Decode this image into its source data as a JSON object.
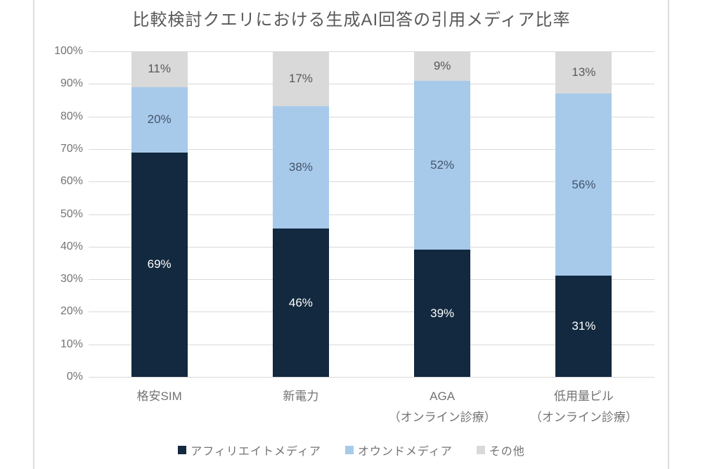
{
  "title": "比較検討クエリにおける生成AI回答の引用メディア比率",
  "chart_data": {
    "type": "bar",
    "stacked": true,
    "orientation": "vertical",
    "title": "比較検討クエリにおける生成AI回答の引用メディア比率",
    "y_axis": {
      "min": 0,
      "max": 100,
      "tick_step": 10,
      "tick_labels": [
        "0%",
        "10%",
        "20%",
        "30%",
        "40%",
        "50%",
        "60%",
        "70%",
        "80%",
        "90%",
        "100%"
      ],
      "grid": true
    },
    "categories": [
      {
        "lines": [
          "格安SIM"
        ]
      },
      {
        "lines": [
          "新電力"
        ]
      },
      {
        "lines": [
          "AGA",
          "（オンライン診療）"
        ]
      },
      {
        "lines": [
          "低用量ピル",
          "（オンライン診療）"
        ]
      }
    ],
    "series": [
      {
        "name": "アフィリエイトメディア",
        "color": "#13293F",
        "label_color": "#FFFFFF",
        "values": [
          69,
          46,
          39,
          31
        ]
      },
      {
        "name": "オウンドメディア",
        "color": "#A7CAEB",
        "label_color": "#44546A",
        "values": [
          20,
          38,
          52,
          56
        ]
      },
      {
        "name": "その他",
        "color": "#D9D9D9",
        "label_color": "#595959",
        "values": [
          11,
          17,
          9,
          13
        ]
      }
    ],
    "value_suffix": "%",
    "legend_position": "bottom"
  },
  "colors": {
    "background": "#FFFFFF",
    "grid": "#D9D9D9",
    "frame_border": "#DCDCDC",
    "axis_text": "#737373",
    "title_text": "#595959"
  }
}
